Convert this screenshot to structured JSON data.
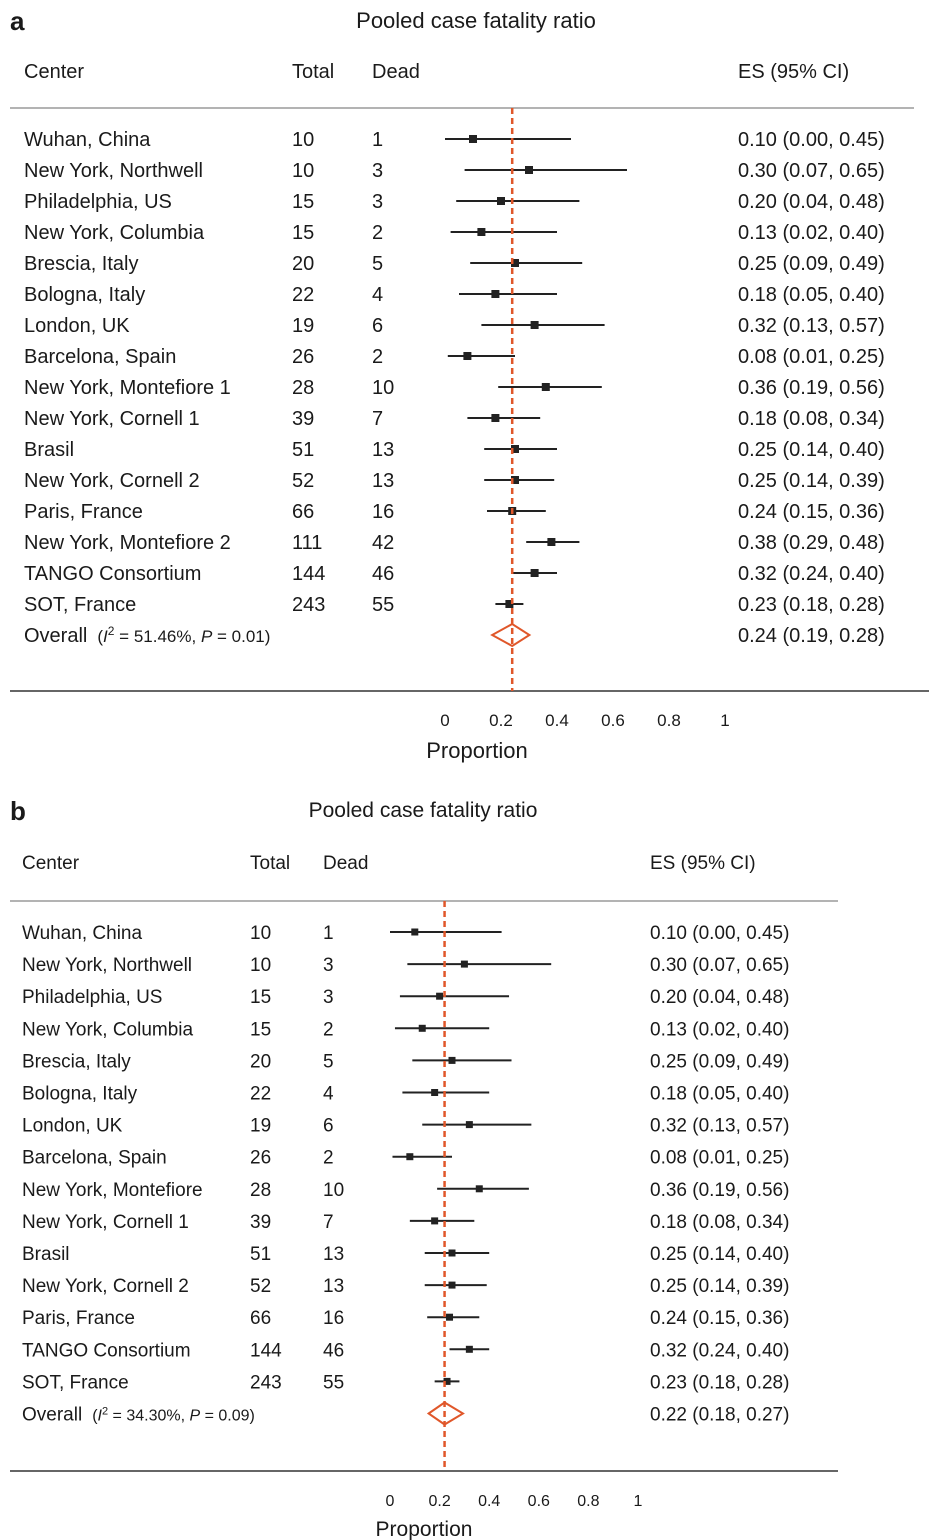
{
  "chart_data": [
    {
      "type": "forest",
      "panel_label": "a",
      "title": "Pooled case fatality ratio",
      "columns": {
        "center": "Center",
        "total": "Total",
        "dead": "Dead",
        "es": "ES (95% CI)"
      },
      "xlabel": "Proportion",
      "xlim": [
        0,
        1
      ],
      "xticks": [
        "0",
        "0.2",
        "0.4",
        "0.6",
        "0.8",
        "1"
      ],
      "pooled_line": 0.24,
      "studies": [
        {
          "center": "Wuhan, China",
          "total": "10",
          "dead": "1",
          "es": 0.1,
          "lo": 0.0,
          "hi": 0.45,
          "es_text": "0.10 (0.00, 0.45)"
        },
        {
          "center": "New York, Northwell",
          "total": "10",
          "dead": "3",
          "es": 0.3,
          "lo": 0.07,
          "hi": 0.65,
          "es_text": "0.30 (0.07, 0.65)"
        },
        {
          "center": "Philadelphia, US",
          "total": "15",
          "dead": "3",
          "es": 0.2,
          "lo": 0.04,
          "hi": 0.48,
          "es_text": "0.20 (0.04, 0.48)"
        },
        {
          "center": "New York, Columbia",
          "total": "15",
          "dead": "2",
          "es": 0.13,
          "lo": 0.02,
          "hi": 0.4,
          "es_text": "0.13 (0.02, 0.40)"
        },
        {
          "center": "Brescia, Italy",
          "total": "20",
          "dead": "5",
          "es": 0.25,
          "lo": 0.09,
          "hi": 0.49,
          "es_text": "0.25 (0.09, 0.49)"
        },
        {
          "center": "Bologna, Italy",
          "total": "22",
          "dead": "4",
          "es": 0.18,
          "lo": 0.05,
          "hi": 0.4,
          "es_text": "0.18 (0.05, 0.40)"
        },
        {
          "center": "London, UK",
          "total": "19",
          "dead": "6",
          "es": 0.32,
          "lo": 0.13,
          "hi": 0.57,
          "es_text": "0.32 (0.13, 0.57)"
        },
        {
          "center": "Barcelona, Spain",
          "total": "26",
          "dead": "2",
          "es": 0.08,
          "lo": 0.01,
          "hi": 0.25,
          "es_text": "0.08 (0.01, 0.25)"
        },
        {
          "center": "New York, Montefiore 1",
          "total": "28",
          "dead": "10",
          "es": 0.36,
          "lo": 0.19,
          "hi": 0.56,
          "es_text": "0.36 (0.19, 0.56)"
        },
        {
          "center": "New York, Cornell 1",
          "total": "39",
          "dead": "7",
          "es": 0.18,
          "lo": 0.08,
          "hi": 0.34,
          "es_text": "0.18 (0.08, 0.34)"
        },
        {
          "center": "Brasil",
          "total": "51",
          "dead": "13",
          "es": 0.25,
          "lo": 0.14,
          "hi": 0.4,
          "es_text": "0.25 (0.14, 0.40)"
        },
        {
          "center": "New York, Cornell 2",
          "total": "52",
          "dead": "13",
          "es": 0.25,
          "lo": 0.14,
          "hi": 0.39,
          "es_text": "0.25 (0.14, 0.39)"
        },
        {
          "center": "Paris, France",
          "total": "66",
          "dead": "16",
          "es": 0.24,
          "lo": 0.15,
          "hi": 0.36,
          "es_text": "0.24 (0.15, 0.36)"
        },
        {
          "center": "New York, Montefiore 2",
          "total": "111",
          "dead": "42",
          "es": 0.38,
          "lo": 0.29,
          "hi": 0.48,
          "es_text": "0.38 (0.29, 0.48)"
        },
        {
          "center": "TANGO Consortium",
          "total": "144",
          "dead": "46",
          "es": 0.32,
          "lo": 0.24,
          "hi": 0.4,
          "es_text": "0.32 (0.24, 0.40)"
        },
        {
          "center": "SOT, France",
          "total": "243",
          "dead": "55",
          "es": 0.23,
          "lo": 0.18,
          "hi": 0.28,
          "es_text": "0.23 (0.18, 0.28)"
        }
      ],
      "overall": {
        "label": "Overall",
        "i2": "51.46%",
        "p": "0.01",
        "es": 0.24,
        "lo": 0.19,
        "hi": 0.28,
        "es_text": "0.24 (0.19, 0.28)"
      },
      "colors": {
        "pooled_line": "#e0572a",
        "marker": "#222222"
      }
    },
    {
      "type": "forest",
      "panel_label": "b",
      "title": "Pooled case fatality ratio",
      "columns": {
        "center": "Center",
        "total": "Total",
        "dead": "Dead",
        "es": "ES (95% CI)"
      },
      "xlabel": "Proportion",
      "xlim": [
        0,
        1
      ],
      "xticks": [
        "0",
        "0.2",
        "0.4",
        "0.6",
        "0.8",
        "1"
      ],
      "pooled_line": 0.22,
      "studies": [
        {
          "center": "Wuhan, China",
          "total": "10",
          "dead": "1",
          "es": 0.1,
          "lo": 0.0,
          "hi": 0.45,
          "es_text": "0.10 (0.00, 0.45)"
        },
        {
          "center": "New York, Northwell",
          "total": "10",
          "dead": "3",
          "es": 0.3,
          "lo": 0.07,
          "hi": 0.65,
          "es_text": "0.30 (0.07, 0.65)"
        },
        {
          "center": "Philadelphia, US",
          "total": "15",
          "dead": "3",
          "es": 0.2,
          "lo": 0.04,
          "hi": 0.48,
          "es_text": "0.20 (0.04, 0.48)"
        },
        {
          "center": "New York, Columbia",
          "total": "15",
          "dead": "2",
          "es": 0.13,
          "lo": 0.02,
          "hi": 0.4,
          "es_text": "0.13 (0.02, 0.40)"
        },
        {
          "center": "Brescia, Italy",
          "total": "20",
          "dead": "5",
          "es": 0.25,
          "lo": 0.09,
          "hi": 0.49,
          "es_text": "0.25 (0.09, 0.49)"
        },
        {
          "center": "Bologna, Italy",
          "total": "22",
          "dead": "4",
          "es": 0.18,
          "lo": 0.05,
          "hi": 0.4,
          "es_text": "0.18 (0.05, 0.40)"
        },
        {
          "center": "London, UK",
          "total": "19",
          "dead": "6",
          "es": 0.32,
          "lo": 0.13,
          "hi": 0.57,
          "es_text": "0.32 (0.13, 0.57)"
        },
        {
          "center": "Barcelona, Spain",
          "total": "26",
          "dead": "2",
          "es": 0.08,
          "lo": 0.01,
          "hi": 0.25,
          "es_text": "0.08 (0.01, 0.25)"
        },
        {
          "center": "New York, Montefiore",
          "total": "28",
          "dead": "10",
          "es": 0.36,
          "lo": 0.19,
          "hi": 0.56,
          "es_text": "0.36 (0.19, 0.56)"
        },
        {
          "center": "New York, Cornell 1",
          "total": "39",
          "dead": "7",
          "es": 0.18,
          "lo": 0.08,
          "hi": 0.34,
          "es_text": "0.18 (0.08, 0.34)"
        },
        {
          "center": "Brasil",
          "total": "51",
          "dead": "13",
          "es": 0.25,
          "lo": 0.14,
          "hi": 0.4,
          "es_text": "0.25 (0.14, 0.40)"
        },
        {
          "center": "New York, Cornell 2",
          "total": "52",
          "dead": "13",
          "es": 0.25,
          "lo": 0.14,
          "hi": 0.39,
          "es_text": "0.25 (0.14, 0.39)"
        },
        {
          "center": "Paris, France",
          "total": "66",
          "dead": "16",
          "es": 0.24,
          "lo": 0.15,
          "hi": 0.36,
          "es_text": "0.24 (0.15, 0.36)"
        },
        {
          "center": "TANGO Consortium",
          "total": "144",
          "dead": "46",
          "es": 0.32,
          "lo": 0.24,
          "hi": 0.4,
          "es_text": "0.32 (0.24, 0.40)"
        },
        {
          "center": "SOT, France",
          "total": "243",
          "dead": "55",
          "es": 0.23,
          "lo": 0.18,
          "hi": 0.28,
          "es_text": "0.23 (0.18, 0.28)"
        }
      ],
      "overall": {
        "label": "Overall",
        "i2": "34.30%",
        "p": "0.09",
        "es": 0.22,
        "lo": 0.18,
        "hi": 0.27,
        "es_text": "0.22 (0.18, 0.27)"
      },
      "colors": {
        "pooled_line": "#e0572a",
        "marker": "#222222"
      }
    }
  ]
}
